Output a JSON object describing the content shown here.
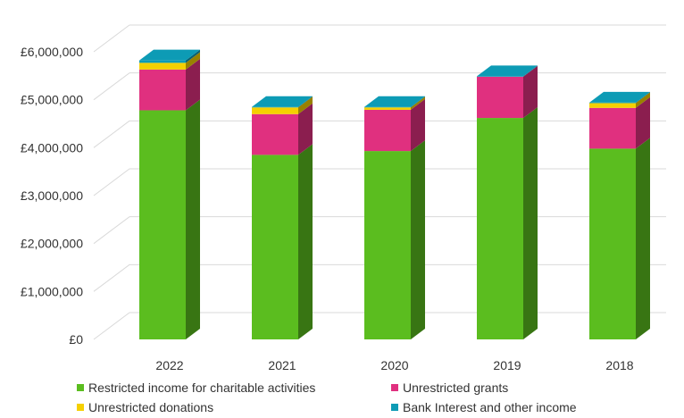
{
  "chart_data": {
    "type": "bar",
    "stacked": true,
    "three_d": true,
    "categories": [
      "2022",
      "2021",
      "2020",
      "2019",
      "2018"
    ],
    "series": [
      {
        "name": "Restricted income for charitable activities",
        "color": "#5bbd1f",
        "values": [
          4780000,
          3850000,
          3930000,
          4620000,
          3980000
        ]
      },
      {
        "name": "Unrestricted grants",
        "color": "#e0307f",
        "values": [
          850000,
          850000,
          860000,
          860000,
          850000
        ]
      },
      {
        "name": "Unrestricted donations",
        "color": "#f5d000",
        "values": [
          140000,
          140000,
          50000,
          0,
          100000
        ]
      },
      {
        "name": "Bank Interest and other income",
        "color": "#0d9bb5",
        "values": [
          50000,
          10000,
          10000,
          10000,
          10000
        ]
      }
    ],
    "y_ticks": [
      "£0",
      "£1,000,000",
      "£2,000,000",
      "£3,000,000",
      "£4,000,000",
      "£5,000,000",
      "£6,000,000"
    ],
    "ylim": [
      0,
      6000000
    ],
    "grid": true,
    "legend_position": "bottom"
  }
}
